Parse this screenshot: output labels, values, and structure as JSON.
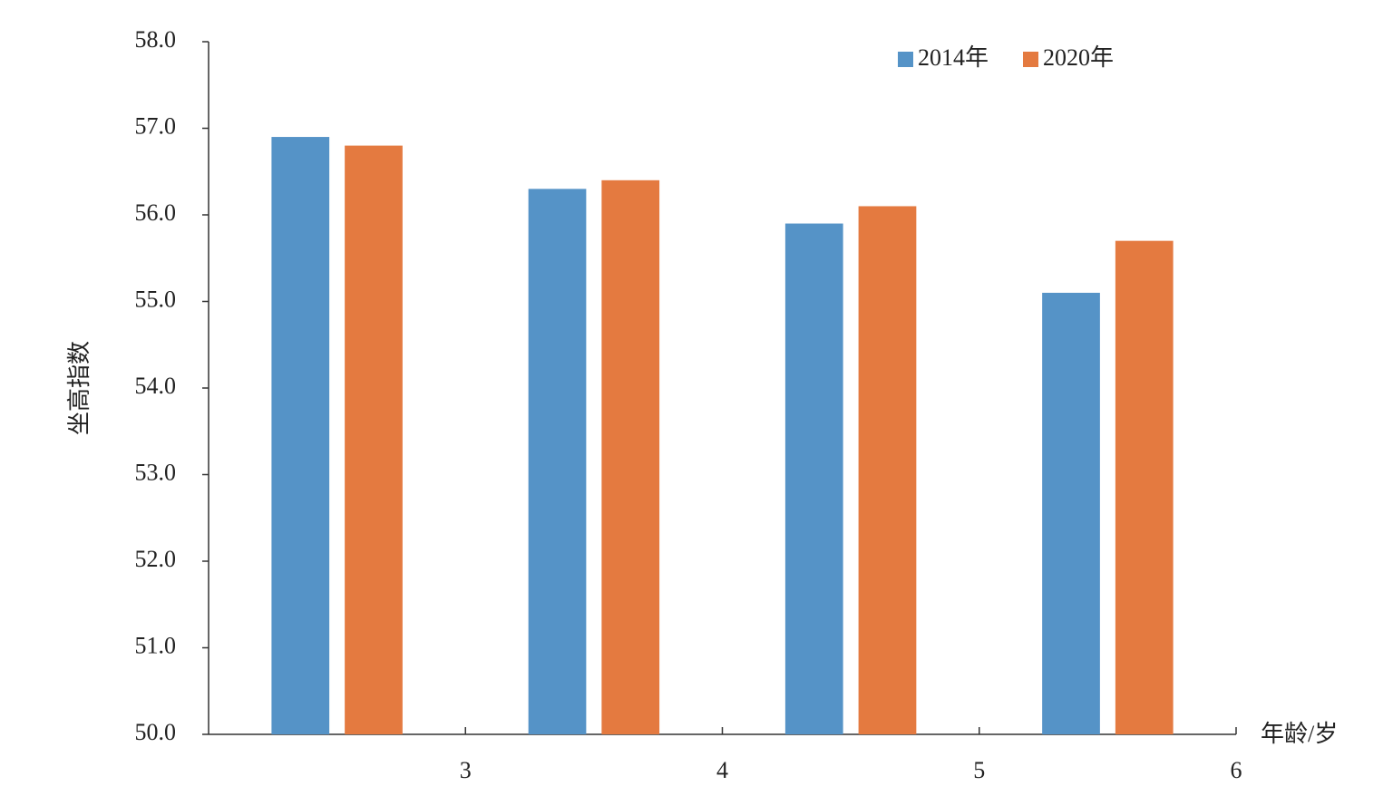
{
  "chart_data": {
    "type": "bar",
    "title": "",
    "ylabel": "坐高指数",
    "xlabel": "年龄/岁",
    "ylim": [
      50.0,
      58.0
    ],
    "yticks": [
      "50.0",
      "51.0",
      "52.0",
      "53.0",
      "54.0",
      "55.0",
      "56.0",
      "57.0",
      "58.0"
    ],
    "xticks": [
      "3",
      "4",
      "5",
      "6"
    ],
    "categories": [
      "3",
      "4",
      "5",
      "6"
    ],
    "series": [
      {
        "name": "2014年",
        "color": "#5593c7",
        "values": [
          56.9,
          56.3,
          55.9,
          55.1
        ]
      },
      {
        "name": "2020年",
        "color": "#e47a40",
        "values": [
          56.8,
          56.4,
          56.1,
          55.7
        ]
      }
    ],
    "legend_position": "top-right",
    "grid": false
  }
}
